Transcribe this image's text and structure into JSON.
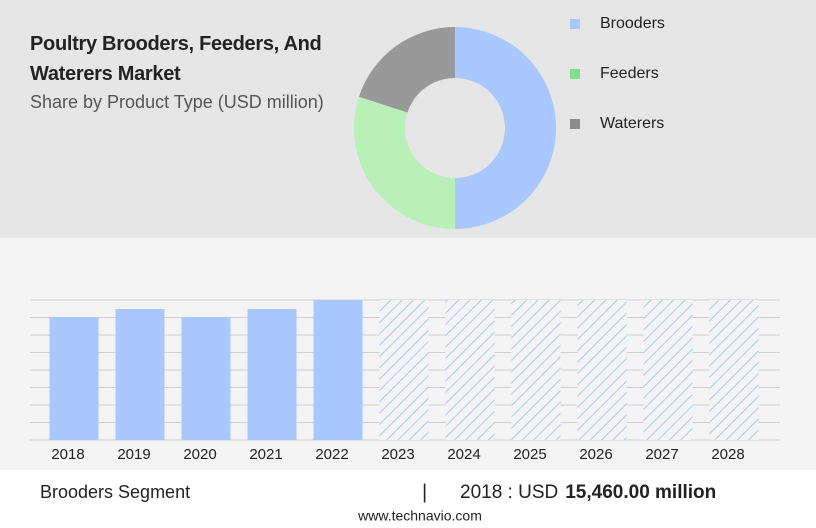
{
  "chart_data": [
    {
      "type": "donut",
      "title": "Poultry Brooders, Feeders, And Waterers Market",
      "subtitle": "Share by Product Type (USD million)",
      "categories": [
        "Brooders",
        "Feeders",
        "Waterers"
      ],
      "values": [
        50,
        30,
        20
      ],
      "colors": [
        "#a8c8ff",
        "#b8f0b8",
        "#999999"
      ],
      "legend_colors": [
        "#a8c8ff",
        "#7ee08e",
        "#8c8c8c"
      ],
      "legend": "right"
    },
    {
      "type": "bar",
      "categories": [
        "2018",
        "2019",
        "2020",
        "2021",
        "2022",
        "2023",
        "2024",
        "2025",
        "2026",
        "2027",
        "2028"
      ],
      "values": [
        15460,
        16466,
        15460,
        16466,
        17597,
        null,
        null,
        null,
        null,
        null,
        null
      ],
      "value_labels": [
        "15,460.00 million",
        null,
        null,
        null,
        null,
        null,
        null,
        null,
        null,
        null,
        null
      ],
      "color": "#a8c8ff",
      "ylim": [
        0,
        17597
      ],
      "grid": true
    }
  ],
  "footer": {
    "segment": "Brooders Segment",
    "separator": "|",
    "prefix": "2018 : USD",
    "source": "www.technavio.com"
  }
}
